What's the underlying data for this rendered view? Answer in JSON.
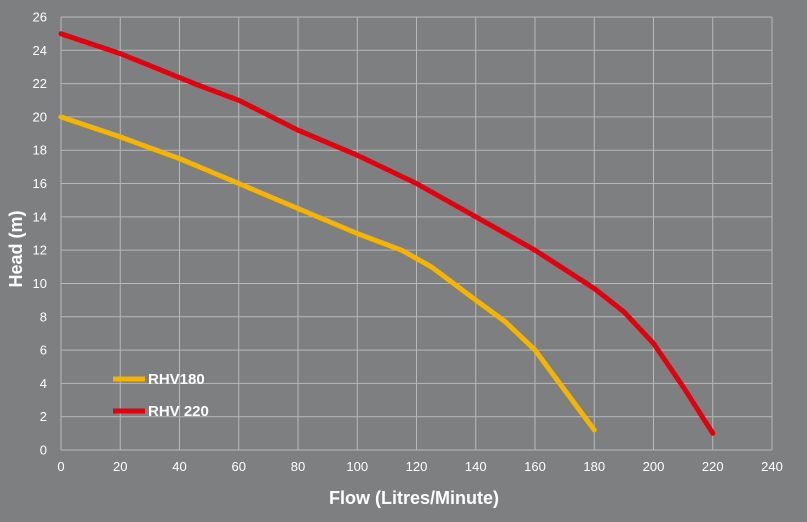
{
  "chart_data": {
    "type": "line",
    "title": "",
    "xlabel": "Flow (Litres/Minute)",
    "ylabel": "Head (m)",
    "xlim": [
      0,
      240
    ],
    "ylim": [
      0,
      26
    ],
    "x_ticks": [
      0,
      20,
      40,
      60,
      80,
      100,
      120,
      140,
      160,
      180,
      200,
      220,
      240
    ],
    "y_ticks": [
      0,
      2,
      4,
      6,
      8,
      10,
      12,
      14,
      16,
      18,
      20,
      22,
      24,
      26
    ],
    "grid": true,
    "legend_position": "bottom-left",
    "series": [
      {
        "name": "RHV180",
        "color": "#f5b400",
        "x": [
          0,
          20,
          40,
          60,
          80,
          100,
          115,
          125,
          140,
          150,
          160,
          170,
          180
        ],
        "y": [
          20,
          18.8,
          17.5,
          16,
          14.5,
          13,
          12,
          11,
          9,
          7.7,
          6,
          3.6,
          1.2
        ]
      },
      {
        "name": "RHV 220",
        "color": "#e0000f",
        "x": [
          0,
          20,
          45,
          60,
          80,
          100,
          120,
          140,
          160,
          180,
          190,
          200,
          210,
          220
        ],
        "y": [
          25,
          23.8,
          22,
          21,
          19.2,
          17.7,
          16,
          14,
          12,
          9.7,
          8.3,
          6.4,
          3.8,
          1
        ]
      }
    ]
  },
  "colors": {
    "background": "#7d7f81",
    "grid": "#b6b8ba",
    "text": "#ffffff"
  }
}
